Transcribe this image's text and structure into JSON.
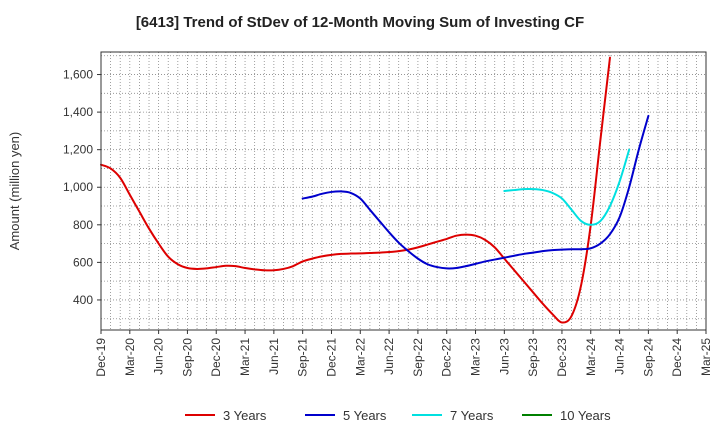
{
  "chart_data": {
    "type": "line",
    "title": "[6413]  Trend of StDev of 12-Month Moving Sum of Investing CF",
    "ylabel": "Amount (million yen)",
    "xlabel": "",
    "ylim": [
      240,
      1720
    ],
    "yticks": [
      400,
      600,
      800,
      1000,
      1200,
      1400,
      1600
    ],
    "ytick_labels": [
      "400",
      "600",
      "800",
      "1,000",
      "1,200",
      "1,400",
      "1,600"
    ],
    "xtick_labels": [
      "Dec-19",
      "Mar-20",
      "Jun-20",
      "Sep-20",
      "Dec-20",
      "Mar-21",
      "Jun-21",
      "Sep-21",
      "Dec-21",
      "Mar-22",
      "Jun-22",
      "Sep-22",
      "Dec-22",
      "Mar-23",
      "Jun-23",
      "Sep-23",
      "Dec-23",
      "Mar-24",
      "Jun-24",
      "Sep-24",
      "Dec-24",
      "Mar-25"
    ],
    "grid": true,
    "legend_position": "bottom",
    "series": [
      {
        "name": "3 Years",
        "color": "#dd0000",
        "start_month_index": 0,
        "values": [
          1120,
          1100,
          1050,
          960,
          870,
          780,
          700,
          630,
          590,
          570,
          565,
          568,
          575,
          582,
          580,
          570,
          563,
          558,
          558,
          565,
          580,
          605,
          620,
          632,
          640,
          645,
          647,
          648,
          650,
          652,
          655,
          660,
          668,
          680,
          695,
          710,
          725,
          742,
          748,
          742,
          720,
          680,
          620,
          560,
          500,
          440,
          380,
          325,
          280,
          315,
          480,
          800,
          1250,
          1690
        ]
      },
      {
        "name": "5 Years",
        "color": "#0000cc",
        "start_month_index": 21,
        "values": [
          940,
          950,
          965,
          975,
          978,
          970,
          940,
          880,
          820,
          760,
          705,
          660,
          620,
          590,
          575,
          568,
          570,
          580,
          592,
          605,
          615,
          625,
          635,
          645,
          652,
          660,
          665,
          668,
          670,
          670,
          675,
          700,
          750,
          840,
          1000,
          1200,
          1380
        ]
      },
      {
        "name": "7 Years",
        "color": "#00e0e0",
        "start_month_index": 42,
        "values": [
          980,
          985,
          990,
          990,
          985,
          970,
          940,
          880,
          820,
          800,
          820,
          900,
          1030,
          1200
        ]
      },
      {
        "name": "10 Years",
        "color": "#008000",
        "start_month_index": 0,
        "values": []
      }
    ]
  }
}
